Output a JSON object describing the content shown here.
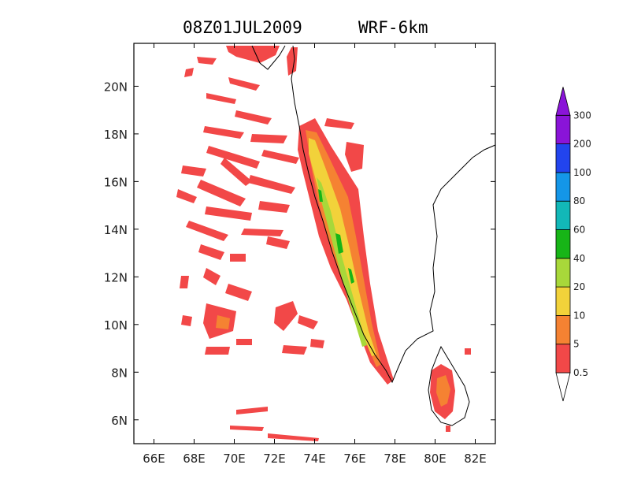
{
  "title": {
    "time": "08Z01JUL2009",
    "model": "WRF-6km"
  },
  "map": {
    "lon_labels": [
      "66E",
      "68E",
      "70E",
      "72E",
      "74E",
      "76E",
      "78E",
      "80E",
      "82E"
    ],
    "lat_labels": [
      "20N",
      "18N",
      "16N",
      "14N",
      "12N",
      "10N",
      "8N",
      "6N"
    ],
    "lon_range": [
      65,
      83
    ],
    "lat_range": [
      5,
      21.8
    ],
    "lon_ticks": [
      66,
      68,
      70,
      72,
      74,
      76,
      78,
      80,
      82
    ],
    "lat_ticks": [
      20,
      18,
      16,
      14,
      12,
      10,
      8,
      6
    ]
  },
  "colorbar": {
    "levels": [
      "0.5",
      "5",
      "10",
      "20",
      "40",
      "60",
      "80",
      "100",
      "200",
      "300"
    ],
    "colors": [
      "#f24848",
      "#f58232",
      "#f2d23a",
      "#a8d83a",
      "#17b517",
      "#12b8b8",
      "#1496e8",
      "#2244ee",
      "#8a14d8"
    ],
    "bottom_arrow_color": "#ffffff",
    "top_arrow_color": "#8a14d8"
  }
}
